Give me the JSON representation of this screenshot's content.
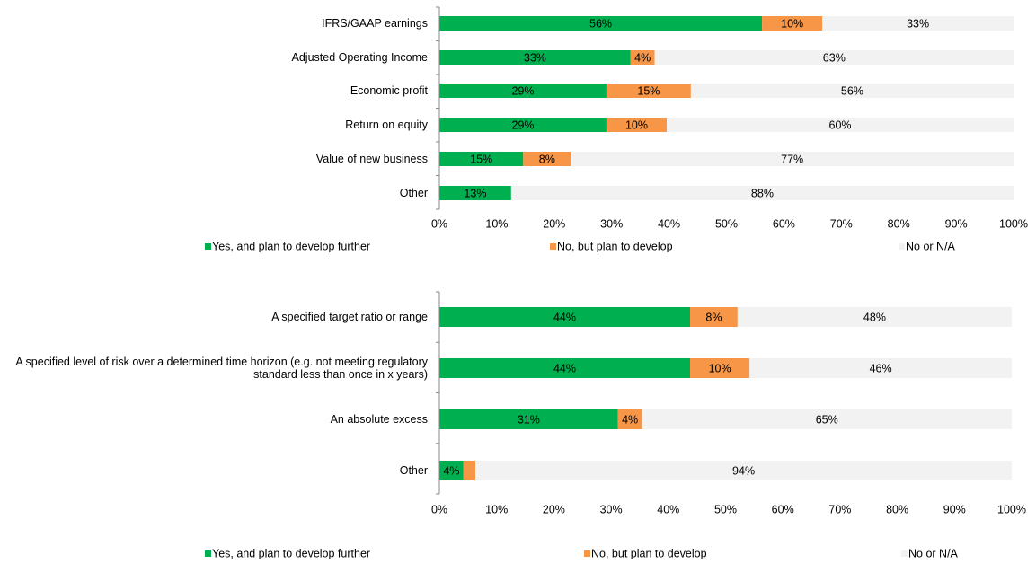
{
  "chart_data": [
    {
      "type": "stacked-bar-horizontal",
      "categories": [
        "IFRS/GAAP earnings",
        "Adjusted Operating Income",
        "Economic profit",
        "Return on equity",
        "Value of new business",
        "Other"
      ],
      "series": [
        {
          "name": "Yes, and plan to develop further",
          "color": "#00b050",
          "values": [
            56.2,
            33.3,
            29.1,
            29.1,
            14.6,
            12.5
          ],
          "value_labels": [
            "56%",
            "33%",
            "29%",
            "29%",
            "15%",
            "13%"
          ]
        },
        {
          "name": "No, but plan to develop",
          "color": "#f79646",
          "values": [
            10.5,
            4.2,
            14.7,
            10.5,
            8.3,
            0
          ],
          "value_labels": [
            "10%",
            "4%",
            "15%",
            "10%",
            "8%",
            null
          ]
        },
        {
          "name": "No or N/A",
          "color": "#f2f2f2",
          "values": [
            33.3,
            62.5,
            56.2,
            60.4,
            77.1,
            87.5
          ],
          "value_labels": [
            "33%",
            "63%",
            "56%",
            "60%",
            "77%",
            "88%"
          ]
        }
      ],
      "xlim": [
        0,
        100
      ],
      "xticks": [
        {
          "value": 0,
          "label": "0%"
        },
        {
          "value": 10,
          "label": "10%"
        },
        {
          "value": 20,
          "label": "20%"
        },
        {
          "value": 30,
          "label": "30%"
        },
        {
          "value": 40,
          "label": "40%"
        },
        {
          "value": 50,
          "label": "50%"
        },
        {
          "value": 60,
          "label": "60%"
        },
        {
          "value": 70,
          "label": "70%"
        },
        {
          "value": 80,
          "label": "80%"
        },
        {
          "value": 90,
          "label": "90%"
        },
        {
          "value": 100,
          "label": "100%"
        }
      ],
      "legend": "bottom"
    },
    {
      "type": "stacked-bar-horizontal",
      "categories": [
        "A specified target ratio or range",
        "A specified level of risk over a determined time horizon (e.g. not meeting regulatory standard less than once in x years)",
        "An absolute excess",
        "Other"
      ],
      "series": [
        {
          "name": "Yes, and plan to develop further",
          "color": "#00b050",
          "values": [
            43.8,
            43.8,
            31.2,
            4.2
          ],
          "value_labels": [
            "44%",
            "44%",
            "31%",
            "4%"
          ]
        },
        {
          "name": "No, but plan to develop",
          "color": "#f79646",
          "values": [
            8.3,
            10.4,
            4.2,
            2.1
          ],
          "value_labels": [
            "8%",
            "10%",
            "4%",
            null
          ]
        },
        {
          "name": "No or N/A",
          "color": "#f2f2f2",
          "values": [
            47.9,
            45.8,
            64.6,
            93.7
          ],
          "value_labels": [
            "48%",
            "46%",
            "65%",
            "94%"
          ]
        }
      ],
      "xlim": [
        0,
        100
      ],
      "xticks": [
        {
          "value": 0,
          "label": "0%"
        },
        {
          "value": 10,
          "label": "10%"
        },
        {
          "value": 20,
          "label": "20%"
        },
        {
          "value": 30,
          "label": "30%"
        },
        {
          "value": 40,
          "label": "40%"
        },
        {
          "value": 50,
          "label": "50%"
        },
        {
          "value": 60,
          "label": "60%"
        },
        {
          "value": 70,
          "label": "70%"
        },
        {
          "value": 80,
          "label": "80%"
        },
        {
          "value": 90,
          "label": "90%"
        },
        {
          "value": 100,
          "label": "100%"
        }
      ],
      "legend": "bottom"
    }
  ]
}
